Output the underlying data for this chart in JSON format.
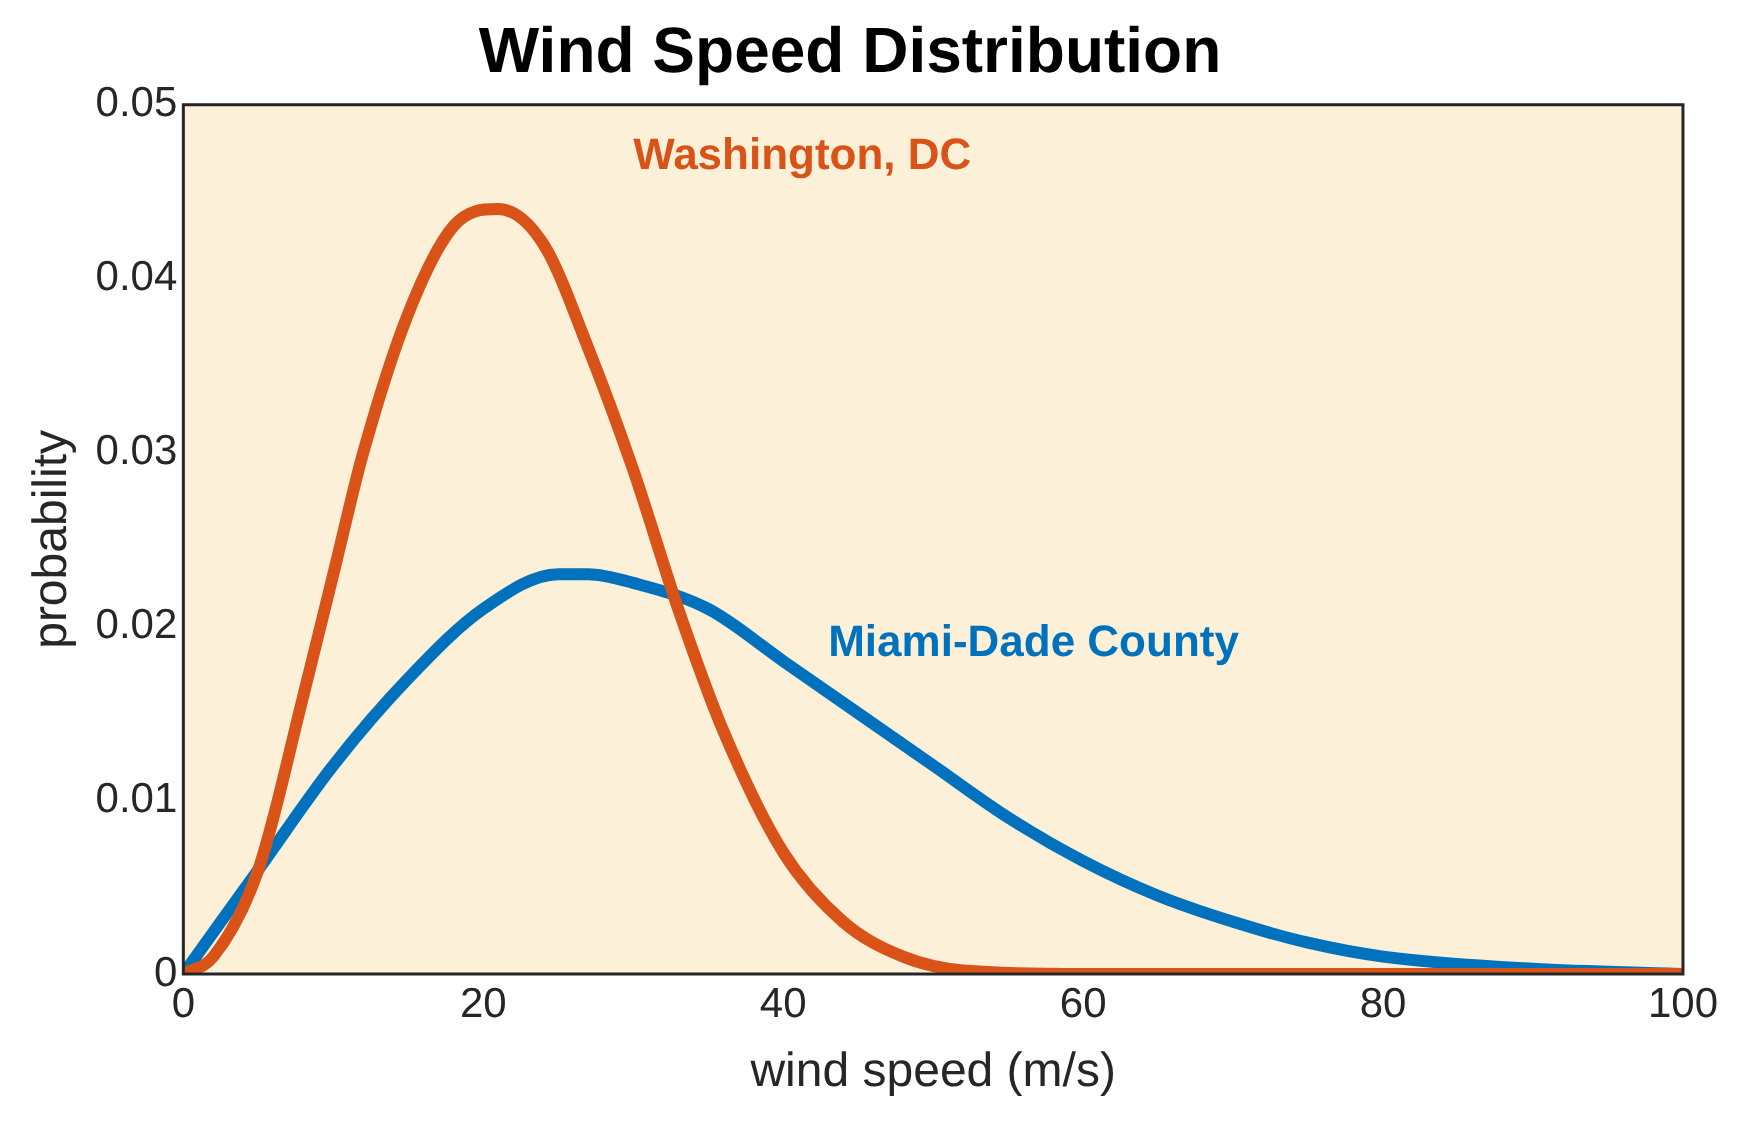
{
  "chart_data": {
    "type": "line",
    "title": "Wind Speed Distribution",
    "xlabel": "wind speed (m/s)",
    "ylabel": "probability",
    "xlim": [
      0,
      100
    ],
    "xticks": [
      0,
      20,
      40,
      60,
      80,
      100
    ],
    "ylim": [
      0,
      0.05
    ],
    "yticks": [
      0,
      0.01,
      0.02,
      0.03,
      0.04,
      0.05
    ],
    "grid": false,
    "legend": false,
    "marker": "none",
    "line_style": "solid",
    "series": [
      {
        "name": "Washington, DC",
        "color": "#d95319",
        "x": [
          0,
          2,
          5,
          8,
          10,
          12,
          15,
          18,
          21,
          24,
          27,
          30,
          33,
          36,
          40,
          44,
          48,
          52,
          60,
          100
        ],
        "values": [
          0,
          0.001,
          0.006,
          0.016,
          0.023,
          0.03,
          0.038,
          0.043,
          0.044,
          0.042,
          0.036,
          0.029,
          0.021,
          0.014,
          0.007,
          0.003,
          0.001,
          0.0002,
          0,
          0
        ]
      },
      {
        "name": "Miami-Dade County",
        "color": "#0072bd",
        "x": [
          0,
          5,
          10,
          15,
          20,
          25,
          27,
          30,
          35,
          40,
          45,
          50,
          55,
          60,
          65,
          70,
          75,
          80,
          90,
          100
        ],
        "values": [
          0,
          0.006,
          0.012,
          0.017,
          0.021,
          0.023,
          0.023,
          0.0225,
          0.021,
          0.018,
          0.015,
          0.012,
          0.009,
          0.0065,
          0.0045,
          0.003,
          0.0018,
          0.001,
          0.0003,
          0
        ]
      }
    ]
  }
}
